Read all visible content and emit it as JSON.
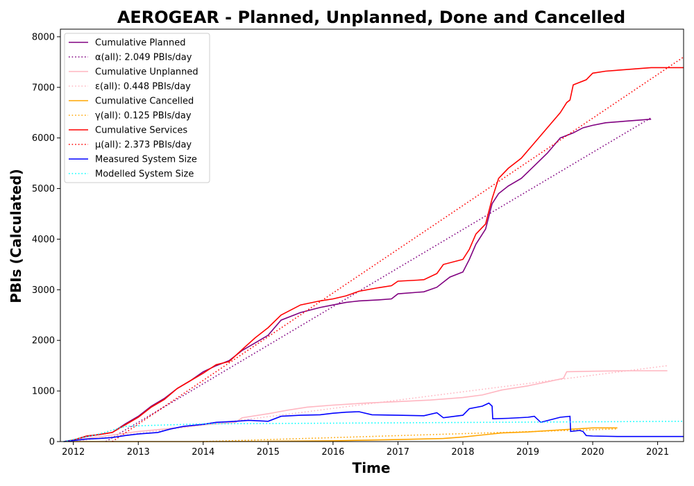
{
  "chart_data": {
    "type": "line",
    "title": "AEROGEAR - Planned, Unplanned, Done  and Cancelled",
    "xlabel": "Time",
    "ylabel": "PBIs (Calculated)",
    "xlim": [
      2011.8,
      2021.4
    ],
    "ylim": [
      0,
      8150
    ],
    "xticks": [
      2012,
      2013,
      2014,
      2015,
      2016,
      2017,
      2018,
      2019,
      2020,
      2021
    ],
    "xtick_labels": [
      "2012",
      "2013",
      "2014",
      "2015",
      "2016",
      "2017",
      "2018",
      "2019",
      "2020",
      "2021"
    ],
    "yticks": [
      0,
      1000,
      2000,
      3000,
      4000,
      5000,
      6000,
      7000,
      8000
    ],
    "ytick_labels": [
      "0",
      "1000",
      "2000",
      "3000",
      "4000",
      "5000",
      "6000",
      "7000",
      "8000"
    ],
    "grid": false,
    "legend_position": "top-left",
    "series": [
      {
        "name": "Cumulative Planned",
        "color": "#800080",
        "style": "solid",
        "x": [
          2011.85,
          2012.0,
          2012.2,
          2012.4,
          2012.6,
          2012.8,
          2013.0,
          2013.2,
          2013.4,
          2013.6,
          2013.8,
          2014.0,
          2014.2,
          2014.4,
          2014.6,
          2014.8,
          2015.0,
          2015.2,
          2015.5,
          2015.8,
          2016.0,
          2016.2,
          2016.4,
          2016.7,
          2016.9,
          2017.0,
          2017.3,
          2017.4,
          2017.6,
          2017.8,
          2018.0,
          2018.1,
          2018.2,
          2018.35,
          2018.45,
          2018.55,
          2018.7,
          2018.9,
          2019.1,
          2019.3,
          2019.5,
          2019.7,
          2019.85,
          2020.0,
          2020.2,
          2020.5,
          2020.9
        ],
        "y": [
          0,
          30,
          100,
          140,
          180,
          350,
          500,
          700,
          850,
          1050,
          1200,
          1380,
          1500,
          1600,
          1800,
          1950,
          2100,
          2400,
          2550,
          2650,
          2700,
          2750,
          2780,
          2800,
          2820,
          2920,
          2950,
          2960,
          3050,
          3250,
          3350,
          3600,
          3900,
          4200,
          4700,
          4900,
          5050,
          5200,
          5450,
          5700,
          6000,
          6100,
          6200,
          6250,
          6300,
          6330,
          6370
        ]
      },
      {
        "name": "α(all): 2.049 PBIs/day",
        "color": "#800080",
        "style": "dotted",
        "x": [
          2012.5,
          2020.9
        ],
        "y": [
          0,
          6400
        ]
      },
      {
        "name": "Cumulative Unplanned",
        "color": "#FFB6C1",
        "style": "solid",
        "x": [
          2011.85,
          2012.2,
          2012.6,
          2013.0,
          2013.5,
          2014.0,
          2014.5,
          2014.6,
          2015.0,
          2015.3,
          2015.6,
          2016.0,
          2016.5,
          2017.0,
          2017.5,
          2018.0,
          2018.3,
          2018.6,
          2019.0,
          2019.3,
          2019.55,
          2019.6,
          2020.0,
          2020.5,
          2021.15
        ],
        "y": [
          0,
          60,
          130,
          200,
          260,
          330,
          380,
          470,
          550,
          620,
          680,
          720,
          760,
          790,
          820,
          870,
          920,
          1020,
          1100,
          1180,
          1250,
          1380,
          1390,
          1400,
          1400
        ]
      },
      {
        "name": "ε(all): 0.448 PBIs/day",
        "color": "#FFB6C1",
        "style": "dotted",
        "x": [
          2012.0,
          2021.15
        ],
        "y": [
          0,
          1500
        ]
      },
      {
        "name": "Cumulative Cancelled",
        "color": "#FFA500",
        "style": "solid",
        "x": [
          2011.85,
          2013.0,
          2014.0,
          2015.0,
          2016.0,
          2017.0,
          2017.7,
          2018.0,
          2018.3,
          2018.6,
          2019.0,
          2019.5,
          2020.0,
          2020.38
        ],
        "y": [
          0,
          0,
          0,
          5,
          15,
          40,
          60,
          90,
          130,
          170,
          190,
          230,
          270,
          270
        ]
      },
      {
        "name": "γ(all): 0.125 PBIs/day",
        "color": "#FFA500",
        "style": "dotted",
        "x": [
          2014.0,
          2020.38
        ],
        "y": [
          0,
          250
        ]
      },
      {
        "name": "Cumulative Services",
        "color": "#FF0000",
        "style": "solid",
        "x": [
          2011.85,
          2012.0,
          2012.2,
          2012.4,
          2012.6,
          2012.8,
          2013.0,
          2013.2,
          2013.4,
          2013.6,
          2013.8,
          2014.0,
          2014.2,
          2014.4,
          2014.6,
          2014.8,
          2015.0,
          2015.2,
          2015.5,
          2015.8,
          2016.0,
          2016.2,
          2016.4,
          2016.7,
          2016.9,
          2017.0,
          2017.3,
          2017.4,
          2017.6,
          2017.7,
          2018.0,
          2018.1,
          2018.2,
          2018.35,
          2018.45,
          2018.55,
          2018.7,
          2018.9,
          2019.1,
          2019.3,
          2019.5,
          2019.6,
          2019.65,
          2019.7,
          2019.9,
          2020.0,
          2020.2,
          2020.5,
          2020.9,
          2021.4
        ],
        "y": [
          0,
          30,
          110,
          140,
          180,
          330,
          480,
          680,
          830,
          1050,
          1200,
          1350,
          1520,
          1580,
          1820,
          2050,
          2250,
          2500,
          2700,
          2780,
          2820,
          2880,
          2970,
          3040,
          3080,
          3170,
          3190,
          3200,
          3320,
          3500,
          3600,
          3800,
          4100,
          4300,
          4800,
          5200,
          5400,
          5600,
          5900,
          6200,
          6500,
          6700,
          6750,
          7050,
          7150,
          7280,
          7320,
          7350,
          7390,
          7390
        ]
      },
      {
        "name": "μ(all): 2.373 PBIs/day",
        "color": "#FF0000",
        "style": "dotted",
        "x": [
          2012.6,
          2021.4
        ],
        "y": [
          0,
          7600
        ]
      },
      {
        "name": "Measured System Size",
        "color": "#0000FF",
        "style": "solid",
        "x": [
          2011.85,
          2012.0,
          2012.2,
          2012.4,
          2012.6,
          2012.8,
          2013.0,
          2013.3,
          2013.5,
          2013.7,
          2014.0,
          2014.2,
          2014.5,
          2014.7,
          2015.0,
          2015.2,
          2015.5,
          2015.8,
          2016.0,
          2016.2,
          2016.4,
          2016.6,
          2017.0,
          2017.4,
          2017.6,
          2017.7,
          2018.0,
          2018.1,
          2018.3,
          2018.4,
          2018.45,
          2018.46,
          2018.7,
          2019.0,
          2019.1,
          2019.2,
          2019.5,
          2019.65,
          2019.66,
          2019.8,
          2019.85,
          2019.9,
          2020.0,
          2020.4,
          2021.4
        ],
        "y": [
          0,
          20,
          50,
          60,
          80,
          120,
          150,
          180,
          250,
          300,
          340,
          380,
          400,
          420,
          400,
          500,
          520,
          530,
          560,
          580,
          590,
          530,
          520,
          510,
          570,
          470,
          520,
          650,
          700,
          760,
          700,
          450,
          460,
          480,
          500,
          380,
          480,
          500,
          200,
          220,
          200,
          120,
          110,
          100,
          100
        ]
      },
      {
        "name": "Modelled System Size",
        "color": "#00FFFF",
        "style": "dotted",
        "x": [
          2011.85,
          2012.4,
          2012.8,
          2013.2,
          2014.0,
          2021.4
        ],
        "y": [
          0,
          150,
          300,
          320,
          350,
          400
        ]
      }
    ]
  }
}
